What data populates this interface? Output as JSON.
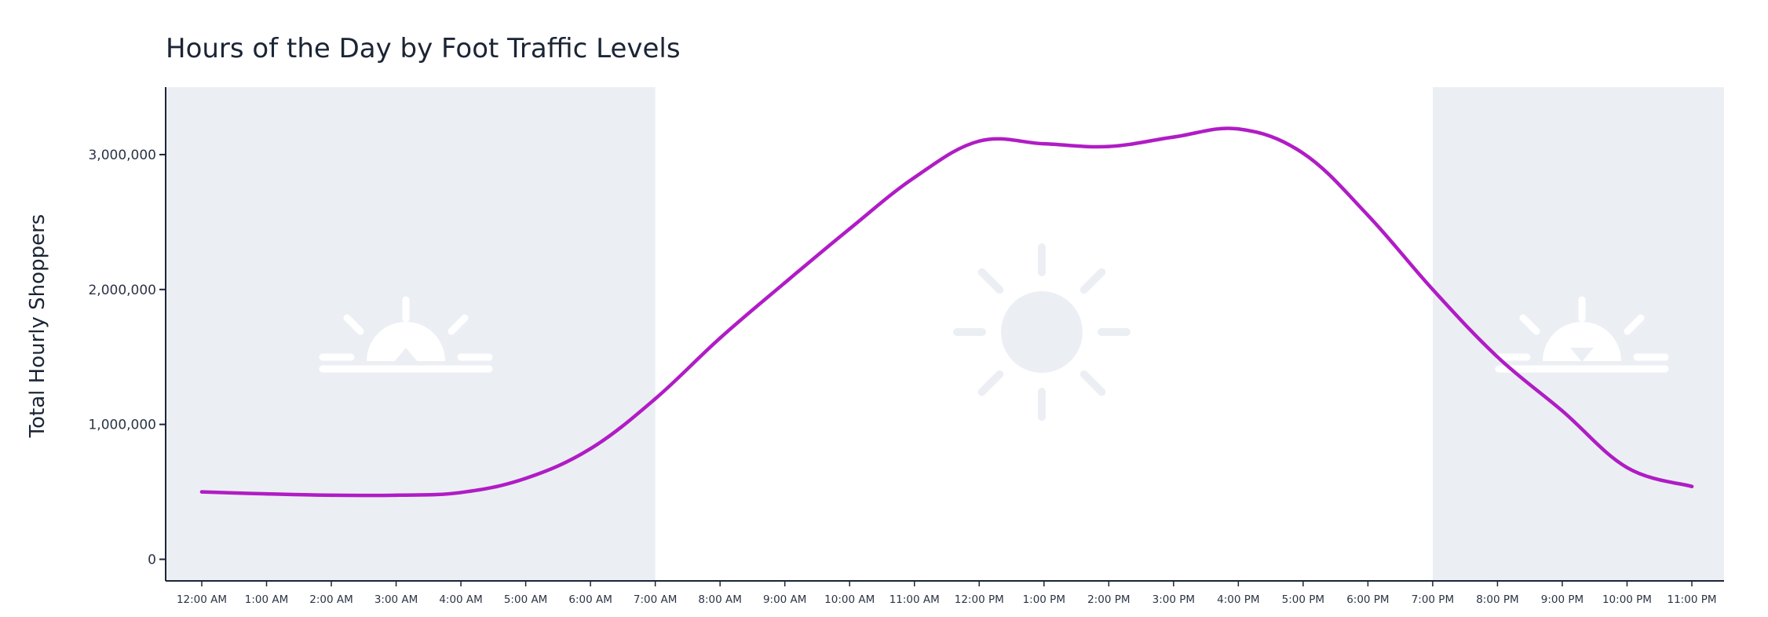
{
  "chart_data": {
    "type": "line",
    "title": "Hours of the Day by Foot Traffic Levels",
    "xlabel": "",
    "ylabel": "Total Hourly Shoppers",
    "ylim": [
      -160000,
      3500000
    ],
    "yticks": [
      0,
      1000000,
      2000000,
      3000000
    ],
    "ytick_labels": [
      "0",
      "1,000,000",
      "2,000,000",
      "3,000,000"
    ],
    "grid": false,
    "legend": "none",
    "categories": [
      "12:00 AM",
      "1:00 AM",
      "2:00 AM",
      "3:00 AM",
      "4:00 AM",
      "5:00 AM",
      "6:00 AM",
      "7:00 AM",
      "8:00 AM",
      "9:00 AM",
      "10:00 AM",
      "11:00 AM",
      "12:00 PM",
      "1:00 PM",
      "2:00 PM",
      "3:00 PM",
      "4:00 PM",
      "5:00 PM",
      "6:00 PM",
      "7:00 PM",
      "8:00 PM",
      "9:00 PM",
      "10:00 PM",
      "11:00 PM"
    ],
    "series": [
      {
        "values": [
          500000,
          485000,
          475000,
          475000,
          495000,
          600000,
          820000,
          1190000,
          1640000,
          2050000,
          2450000,
          2830000,
          3100000,
          3080000,
          3060000,
          3130000,
          3190000,
          3010000,
          2550000,
          2000000,
          1500000,
          1100000,
          680000,
          540000
        ],
        "color": "#b01cc5"
      }
    ],
    "shaded_bands": [
      {
        "from": "12:00 AM",
        "to": "7:00 AM",
        "color": "#ebeff4",
        "icon": "sunrise-icon"
      },
      {
        "from": "7:00 PM",
        "to": "11:00 PM",
        "color": "#ebeff4",
        "icon": "sunset-icon"
      }
    ],
    "daytime_icon": "sun-icon",
    "colors": {
      "line": "#b01cc5",
      "band": "#ebeff4",
      "icon_on_band": "#ffffff",
      "icon_on_white": "#ebeff4",
      "axis": "#1b2536",
      "text": "#1b2536"
    }
  }
}
